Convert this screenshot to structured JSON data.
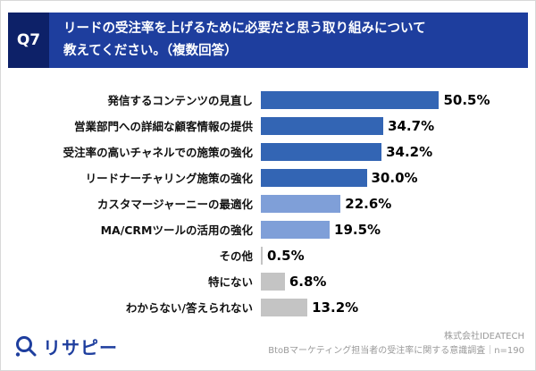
{
  "header": {
    "q_label": "Q7",
    "title_line1": "リードの受注率を上げるために必要だと思う取り組みについて",
    "title_line2": "教えてください。（複数回答）"
  },
  "colors": {
    "q_box_bg": "#0d2168",
    "header_bg": "#1e3e9e",
    "bar_dark_blue": "#3365b4",
    "bar_light_blue": "#7f9fd8",
    "bar_gray": "#c4c4c4",
    "logo_navy": "#1e3e9e"
  },
  "chart_data": {
    "type": "bar",
    "orientation": "horizontal",
    "title": "リードの受注率を上げるために必要だと思う取り組みについて教えてください。（複数回答）",
    "xlabel": "",
    "ylabel": "",
    "xlim": [
      0,
      55
    ],
    "grid": false,
    "legend": "none",
    "categories": [
      "発信するコンテンツの見直し",
      "営業部門への詳細な顧客情報の提供",
      "受注率の高いチャネルでの施策の強化",
      "リードナーチャリング施策の強化",
      "カスタマージャーニーの最適化",
      "MA/CRMツールの活用の強化",
      "その他",
      "特にない",
      "わからない/答えられない"
    ],
    "values": [
      50.5,
      34.7,
      34.2,
      30.0,
      22.6,
      19.5,
      0.5,
      6.8,
      13.2
    ],
    "value_labels": [
      "50.5%",
      "34.7%",
      "34.2%",
      "30.0%",
      "22.6%",
      "19.5%",
      "0.5%",
      "6.8%",
      "13.2%"
    ],
    "bar_colors": [
      "#3365b4",
      "#3365b4",
      "#3365b4",
      "#3365b4",
      "#7f9fd8",
      "#7f9fd8",
      "#c4c4c4",
      "#c4c4c4",
      "#c4c4c4"
    ]
  },
  "footer": {
    "logo_text": "リサピー",
    "source_line1": "株式会社IDEATECH",
    "source_line2": "BtoBマーケティング担当者の受注率に関する意識調査｜n=190"
  }
}
